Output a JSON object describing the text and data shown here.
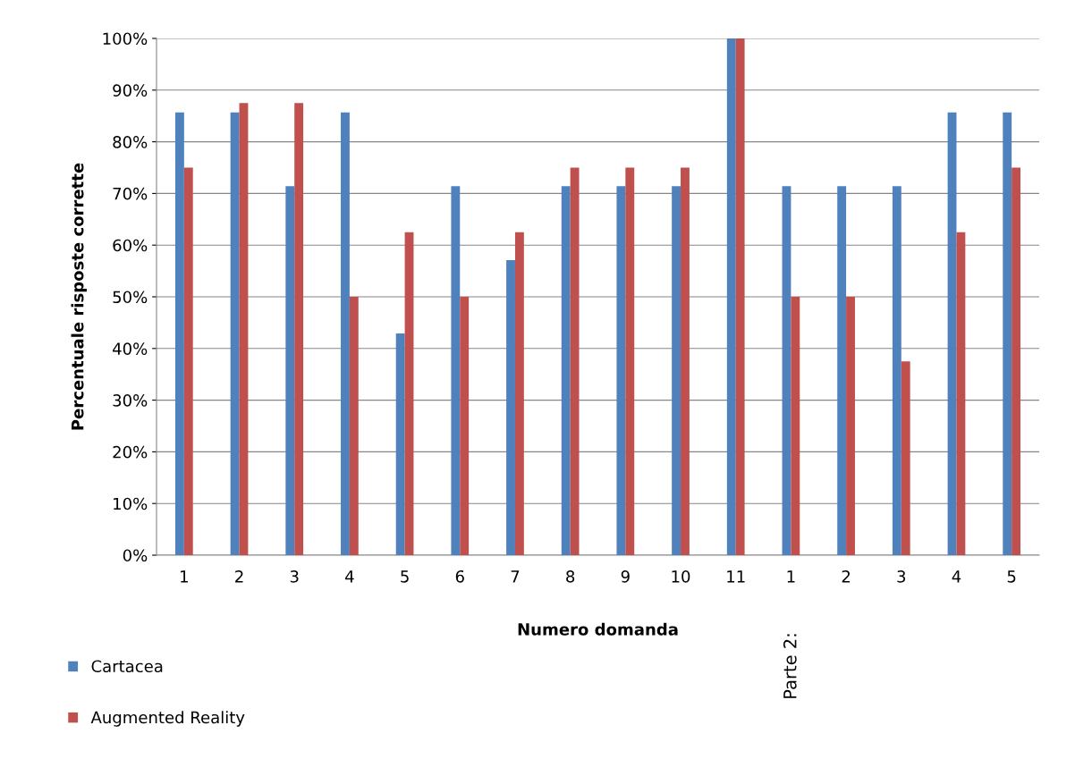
{
  "chart_data": {
    "type": "bar",
    "xlabel": "Numero domanda",
    "ylabel": "Percentuale risposte corrette",
    "categories": [
      "1",
      "2",
      "3",
      "4",
      "5",
      "6",
      "7",
      "8",
      "9",
      "10",
      "11",
      "1",
      "2",
      "3",
      "4",
      "5"
    ],
    "series": [
      {
        "name": "Cartacea",
        "color": "#4f81bd",
        "values": [
          85.7,
          85.7,
          71.4,
          85.7,
          42.9,
          71.4,
          57.1,
          71.4,
          71.4,
          71.4,
          100,
          71.4,
          71.4,
          71.4,
          85.7,
          85.7
        ]
      },
      {
        "name": "Augmented Reality",
        "color": "#c0504d",
        "values": [
          75,
          87.5,
          87.5,
          50,
          62.5,
          50,
          62.5,
          75,
          75,
          75,
          100,
          50,
          50,
          37.5,
          62.5,
          75
        ]
      }
    ],
    "ylim": [
      0,
      100
    ],
    "yticks": [
      {
        "value": 0,
        "label": "0%"
      },
      {
        "value": 10,
        "label": "10%"
      },
      {
        "value": 20,
        "label": "20%"
      },
      {
        "value": 30,
        "label": "30%"
      },
      {
        "value": 40,
        "label": "40%"
      },
      {
        "value": 50,
        "label": "50%"
      },
      {
        "value": 60,
        "label": "60%"
      },
      {
        "value": 70,
        "label": "70%"
      },
      {
        "value": 80,
        "label": "80%"
      },
      {
        "value": 90,
        "label": "90%"
      },
      {
        "value": 100,
        "label": "100%"
      }
    ],
    "grid": "y",
    "legend": "bottom left",
    "annotations": [
      "Parte 2:"
    ]
  }
}
